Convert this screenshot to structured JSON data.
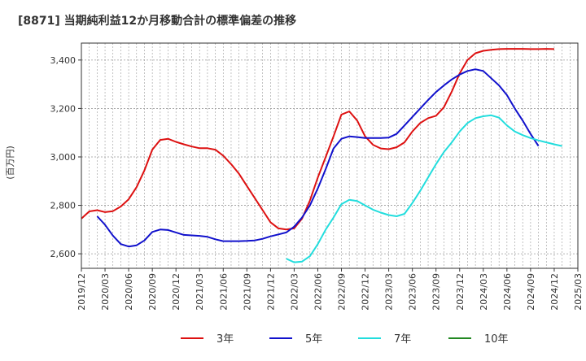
{
  "chart_data": {
    "type": "line",
    "title": "[8871]  当期純利益12か月移動合計の標準偏差の推移",
    "ylabel": "(百万円)",
    "xlabel": "",
    "ylim": [
      2540,
      3470
    ],
    "yticks": [
      2600,
      2800,
      3000,
      3200,
      3400
    ],
    "ytick_labels": [
      "2,600",
      "2,800",
      "3,000",
      "3,200",
      "3,400"
    ],
    "x_range": [
      "2019-12",
      "2025-03"
    ],
    "xtick_labels": [
      "2019/12",
      "2020/03",
      "2020/06",
      "2020/09",
      "2020/12",
      "2021/03",
      "2021/06",
      "2021/09",
      "2021/12",
      "2022/03",
      "2022/06",
      "2022/09",
      "2022/12",
      "2023/03",
      "2023/06",
      "2023/09",
      "2023/12",
      "2024/03",
      "2024/06",
      "2024/09",
      "2024/12",
      "2025/03"
    ],
    "grid": true,
    "legend_position": "bottom",
    "series": [
      {
        "name": "3年",
        "color": "#dd1111",
        "start": "2019-12",
        "values": [
          2745,
          2775,
          2780,
          2772,
          2776,
          2795,
          2825,
          2875,
          2945,
          3030,
          3070,
          3075,
          3062,
          3052,
          3043,
          3036,
          3036,
          3030,
          3005,
          2970,
          2930,
          2880,
          2830,
          2780,
          2730,
          2705,
          2700,
          2705,
          2745,
          2820,
          2915,
          3000,
          3085,
          3175,
          3188,
          3150,
          3085,
          3050,
          3035,
          3032,
          3040,
          3060,
          3105,
          3140,
          3160,
          3170,
          3205,
          3270,
          3345,
          3400,
          3428,
          3438,
          3442,
          3445,
          3446,
          3446,
          3446,
          3445,
          3445,
          3446,
          3445
        ]
      },
      {
        "name": "5年",
        "color": "#1111cc",
        "start": "2020-02",
        "values": [
          2755,
          2720,
          2675,
          2640,
          2630,
          2635,
          2655,
          2690,
          2700,
          2698,
          2688,
          2678,
          2676,
          2674,
          2670,
          2660,
          2652,
          2652,
          2652,
          2653,
          2655,
          2662,
          2672,
          2680,
          2688,
          2712,
          2750,
          2800,
          2870,
          2950,
          3035,
          3075,
          3085,
          3082,
          3078,
          3078,
          3078,
          3080,
          3095,
          3130,
          3165,
          3200,
          3235,
          3268,
          3295,
          3320,
          3340,
          3355,
          3362,
          3355,
          3325,
          3295,
          3255,
          3200,
          3150,
          3095,
          3045
        ]
      },
      {
        "name": "7年",
        "color": "#22dddd",
        "start": "2022-02",
        "values": [
          2580,
          2565,
          2568,
          2590,
          2640,
          2700,
          2750,
          2805,
          2823,
          2818,
          2800,
          2782,
          2770,
          2760,
          2755,
          2765,
          2810,
          2860,
          2915,
          2970,
          3020,
          3060,
          3105,
          3140,
          3160,
          3168,
          3172,
          3162,
          3130,
          3105,
          3090,
          3078,
          3068,
          3060,
          3052,
          3045
        ]
      },
      {
        "name": "10年",
        "color": "#228822",
        "start": "2025-01",
        "values": []
      }
    ]
  }
}
